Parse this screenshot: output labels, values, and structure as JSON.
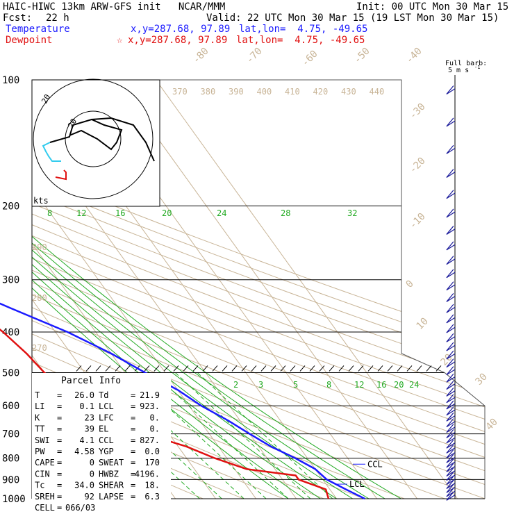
{
  "header": {
    "model_line": "HAIC-HIWC 13km ARW-GFS init   NCAR/MMM",
    "init_line": "Init: 00 UTC Mon 30 Mar 15",
    "fcst_label": "Fcst:",
    "fcst_value": "22 h",
    "valid_line": "Valid: 22 UTC Mon 30 Mar 15 (19 LST Mon 30 Mar 15)",
    "temp_label": "Temperature",
    "temp_xy": "x,y=287.68, 97.89",
    "temp_latlon": "lat,lon=  4.75, -49.65",
    "dew_label": "Dewpoint",
    "dew_xy": "x,y=287.68, 97.89",
    "dew_latlon": "lat,lon=  4.75, -49.65",
    "colors": {
      "temperature": "#1a1aff",
      "dewpoint": "#e01010"
    }
  },
  "barb_legend": {
    "line1": "Full barb:",
    "line2": "5 m s",
    "sup": "-1"
  },
  "hodograph": {
    "units": "kts",
    "ring_label": "20"
  },
  "parcel": {
    "title": "Parcel Info",
    "rows": [
      {
        "l": "T",
        "lv": "26.0",
        "r": "Td",
        "rv": "21.9"
      },
      {
        "l": "LI",
        "lv": "0.1",
        "r": "LCL",
        "rv": "923."
      },
      {
        "l": "K",
        "lv": "23",
        "r": "LFC",
        "rv": "0."
      },
      {
        "l": "TT",
        "lv": "39",
        "r": "EL",
        "rv": "0."
      },
      {
        "l": "SWI",
        "lv": "4.1",
        "r": "CCL",
        "rv": "827."
      },
      {
        "l": "PW",
        "lv": "4.58",
        "r": "YGP",
        "rv": "0.0"
      },
      {
        "l": "CAPE",
        "lv": "0",
        "r": "SWEAT",
        "rv": "170"
      },
      {
        "l": "CIN",
        "lv": "0",
        "r": "HWBZ",
        "rv": "4196."
      },
      {
        "l": "Tc",
        "lv": "34.0",
        "r": "SHEAR",
        "rv": "18."
      },
      {
        "l": "SREH",
        "lv": "92",
        "r": "LAPSE",
        "rv": "6.3"
      }
    ],
    "cell_label": "CELL",
    "cell_value": "066/03"
  },
  "chart_data": {
    "type": "line",
    "subtype": "skew-T log-p",
    "pressure_levels": [
      100,
      200,
      300,
      400,
      500,
      600,
      700,
      800,
      900,
      1000
    ],
    "temperature_isotherm_labels": [
      -80,
      -70,
      -60,
      -50,
      -40,
      -30,
      -20,
      -10,
      0,
      10,
      20,
      30,
      40
    ],
    "theta_labels": [
      370,
      380,
      390,
      400,
      410,
      420,
      430,
      440
    ],
    "theta_left_labels": [
      290,
      280,
      270
    ],
    "mixing_ratio_upper_labels": [
      8,
      12,
      16,
      20,
      24,
      28,
      32
    ],
    "mixing_ratio_lower_labels": [
      2,
      3,
      5,
      8,
      12,
      16,
      20,
      24
    ],
    "annotations": [
      "CCL",
      "LCL"
    ],
    "series": [
      {
        "name": "Temperature",
        "points": [
          [
            100,
            -72
          ],
          [
            150,
            -65
          ],
          [
            200,
            -55
          ],
          [
            300,
            -38
          ],
          [
            350,
            -27
          ],
          [
            400,
            -17
          ],
          [
            450,
            -10
          ],
          [
            500,
            -5
          ],
          [
            550,
            0
          ],
          [
            600,
            3
          ],
          [
            650,
            7
          ],
          [
            700,
            10
          ],
          [
            750,
            13
          ],
          [
            800,
            17
          ],
          [
            850,
            20
          ],
          [
            900,
            21
          ],
          [
            950,
            24
          ],
          [
            1000,
            27
          ]
        ]
      },
      {
        "name": "Dewpoint",
        "points": [
          [
            100,
            -83
          ],
          [
            150,
            -91
          ],
          [
            170,
            -89
          ],
          [
            185,
            -80
          ],
          [
            200,
            -78
          ],
          [
            210,
            -81
          ],
          [
            230,
            -88
          ],
          [
            260,
            -62
          ],
          [
            300,
            -93
          ],
          [
            350,
            -39
          ],
          [
            370,
            -35
          ],
          [
            400,
            -33
          ],
          [
            450,
            -31
          ],
          [
            500,
            -30
          ],
          [
            550,
            -28
          ],
          [
            600,
            -20
          ],
          [
            650,
            -18
          ],
          [
            700,
            -16
          ],
          [
            750,
            -8
          ],
          [
            800,
            -3
          ],
          [
            850,
            3
          ],
          [
            880,
            14
          ],
          [
            900,
            14
          ],
          [
            950,
            19
          ],
          [
            1000,
            18
          ]
        ]
      }
    ]
  }
}
